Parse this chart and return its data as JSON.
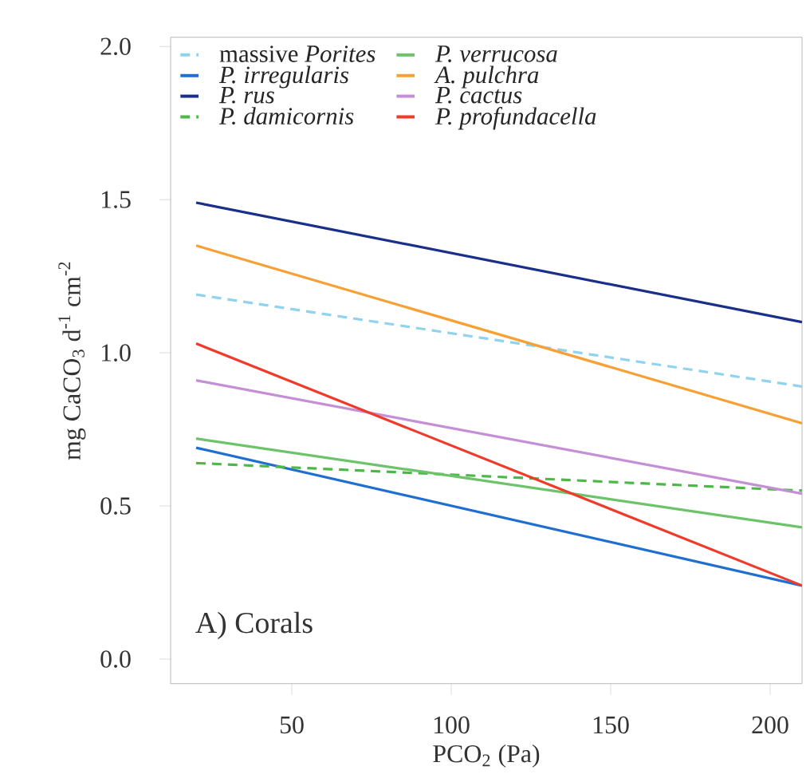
{
  "chart_data": {
    "type": "line",
    "xlabel": "PCO$_{2}$ (Pa)",
    "ylabel": "mg CaCO$_{3}$ d$^{-1}$ cm$^{-2}$",
    "annotations": [
      "A) Corals"
    ],
    "x": [
      20,
      210
    ],
    "xlim": [
      12,
      210
    ],
    "ylim": [
      -0.08,
      2.03
    ],
    "xticks": [
      50,
      100,
      150,
      200
    ],
    "yticks": [
      {
        "value": 0,
        "label": "0.0"
      },
      {
        "value": 0.5,
        "label": "0.5"
      },
      {
        "value": 1,
        "label": "1.0"
      },
      {
        "value": 1.5,
        "label": "1.5"
      },
      {
        "value": 2,
        "label": "2.0"
      }
    ],
    "grid": false,
    "legend": "top",
    "marker": "none",
    "series": [
      {
        "name": "massive *Porites*",
        "color": "#8fd3ef",
        "line_style": "dashed",
        "values": [
          1.19,
          0.89
        ]
      },
      {
        "name": "*P. irregularis*",
        "color": "#1f6fd0",
        "line_style": "solid",
        "values": [
          0.69,
          0.24
        ]
      },
      {
        "name": "*P. rus*",
        "color": "#1a2f8a",
        "line_style": "solid",
        "values": [
          1.49,
          1.1
        ]
      },
      {
        "name": "*P. damicornis*",
        "color": "#4db848",
        "line_style": "dashed",
        "values": [
          0.64,
          0.55
        ]
      },
      {
        "name": "*P. verrucosa*",
        "color": "#6cc36a",
        "line_style": "solid",
        "values": [
          0.72,
          0.43
        ]
      },
      {
        "name": "*A. pulchra*",
        "color": "#f7a035",
        "line_style": "solid",
        "values": [
          1.35,
          0.77
        ]
      },
      {
        "name": "*P. cactus*",
        "color": "#c58fd6",
        "line_style": "solid",
        "values": [
          0.91,
          0.54
        ]
      },
      {
        "name": "*P. profundacella*",
        "color": "#f03a2a",
        "line_style": "solid",
        "values": [
          1.03,
          0.24
        ]
      }
    ]
  }
}
